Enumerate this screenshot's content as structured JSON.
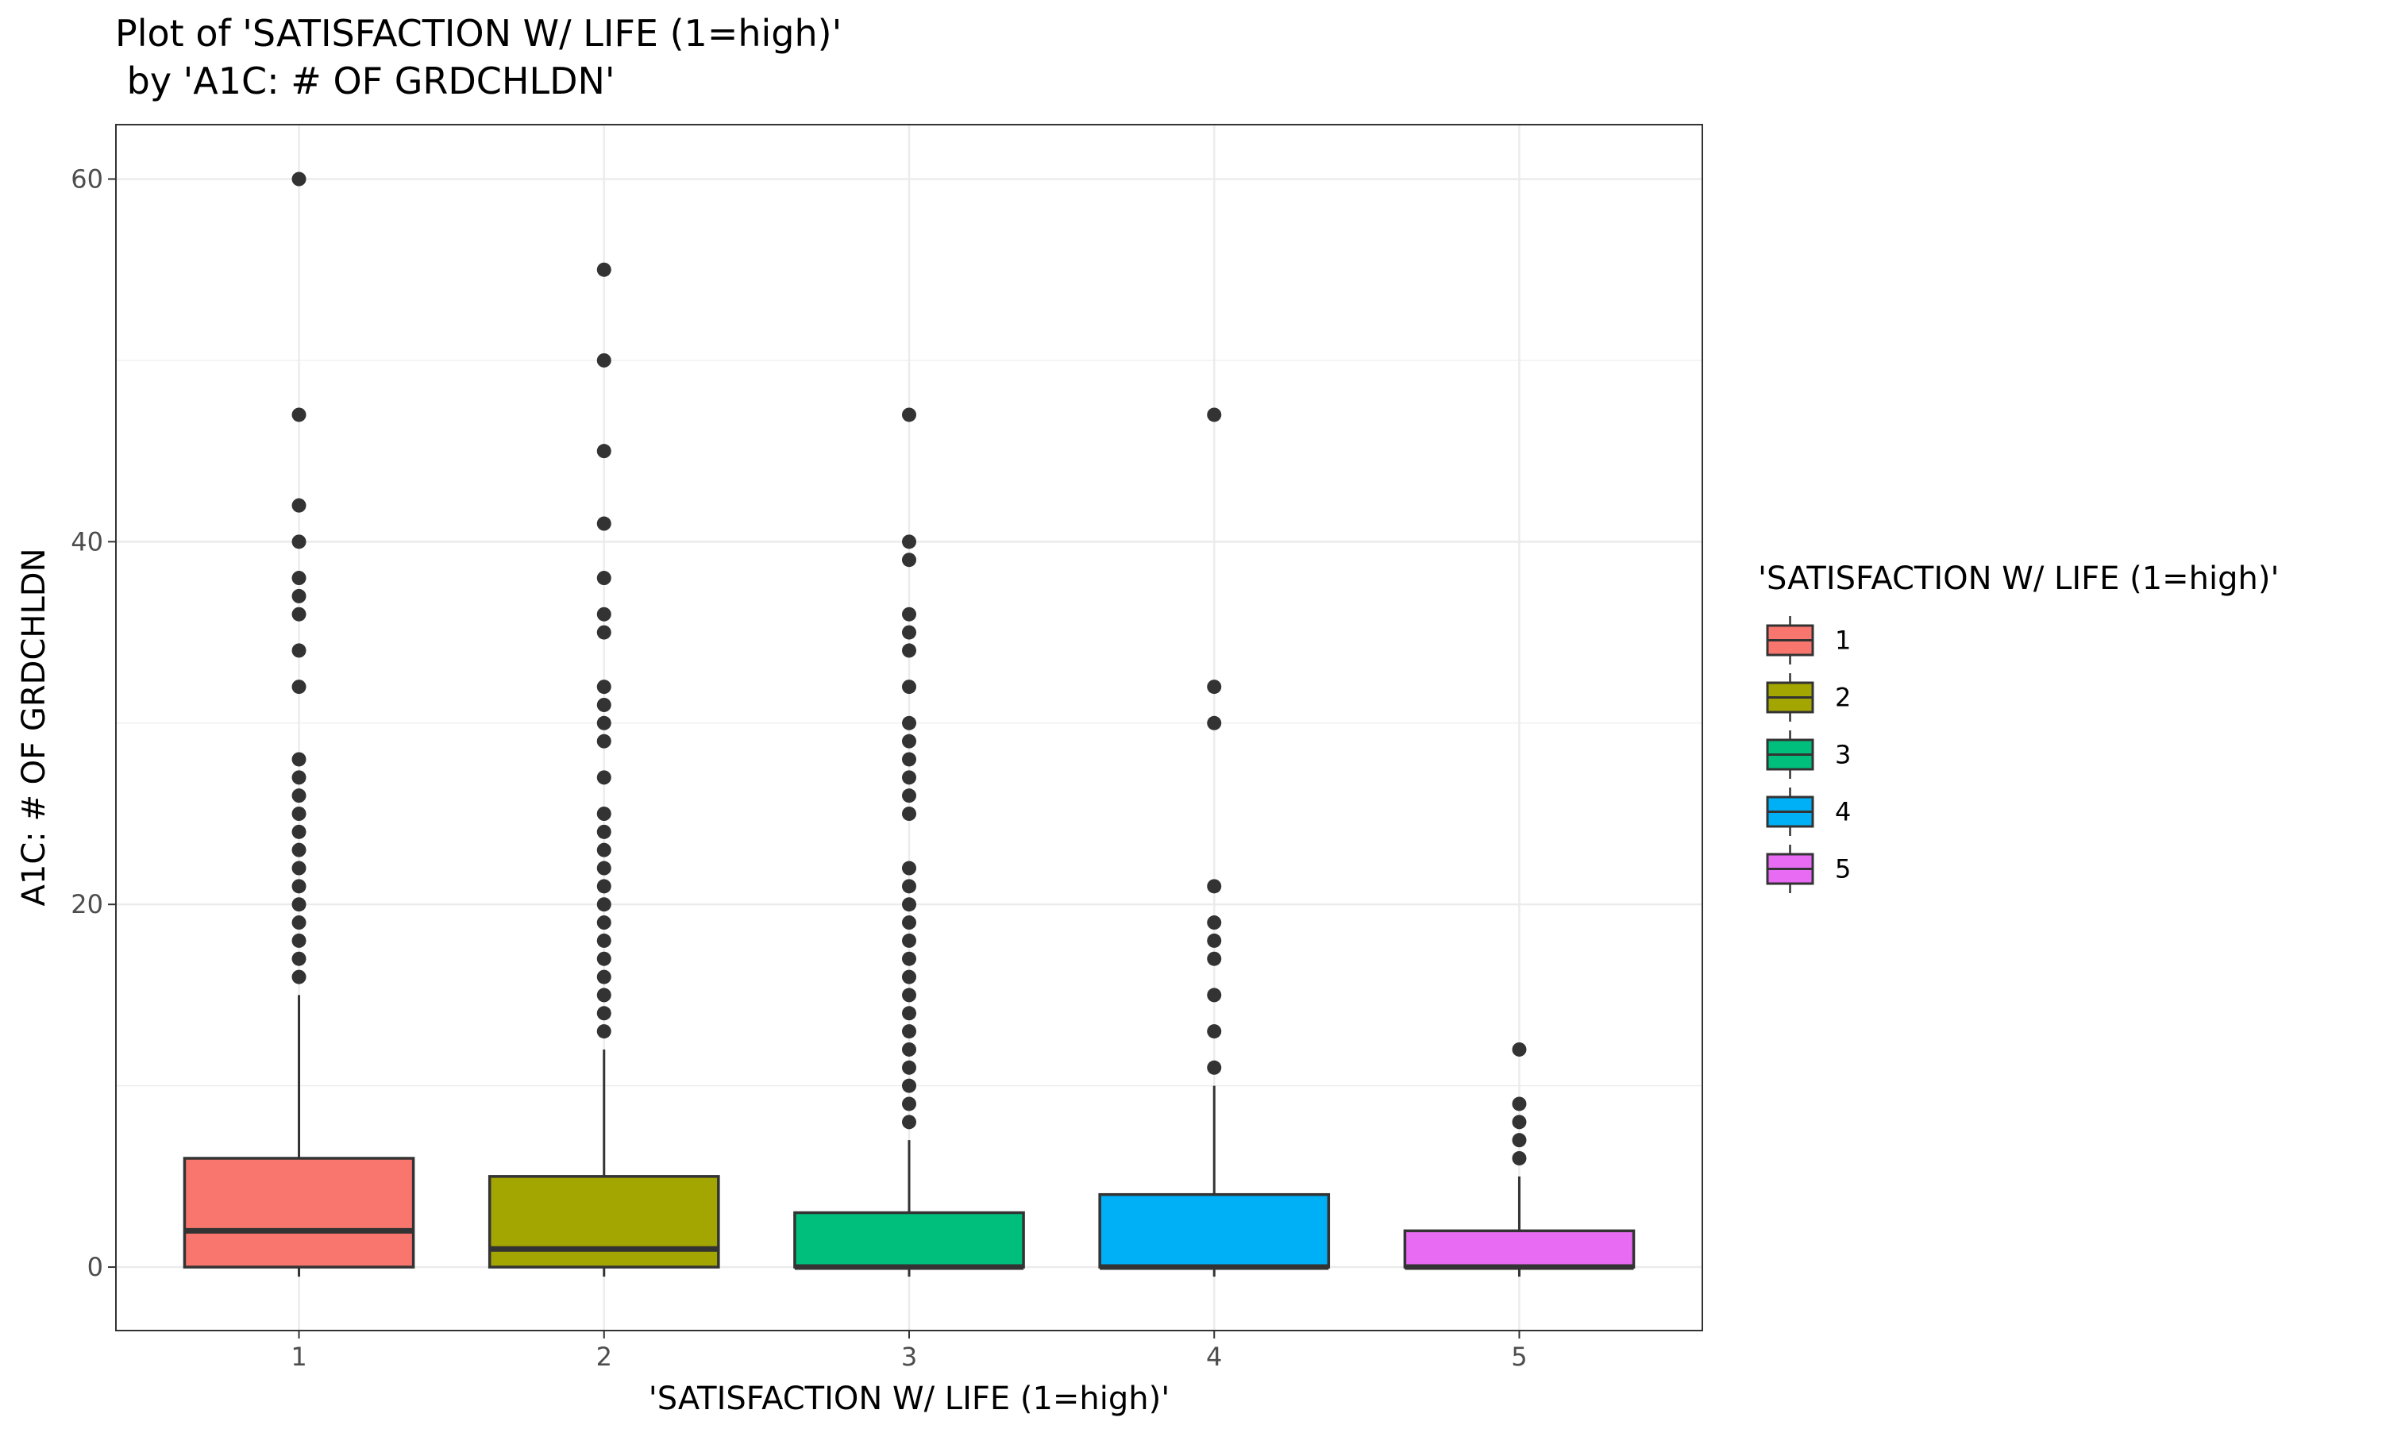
{
  "chart_data": {
    "type": "box",
    "title_line1": "Plot of 'SATISFACTION W/ LIFE (1=high)'",
    "title_line2": " by 'A1C: # OF GRDCHLDN'",
    "xlabel": "'SATISFACTION W/ LIFE (1=high)'",
    "ylabel": "A1C: # OF GRDCHLDN",
    "ylim": [
      -3.5,
      63
    ],
    "y_ticks": [
      0,
      20,
      40,
      60
    ],
    "categories": [
      "1",
      "2",
      "3",
      "4",
      "5"
    ],
    "legend": {
      "title": "'SATISFACTION W/ LIFE (1=high)'",
      "position": "right",
      "entries": [
        "1",
        "2",
        "3",
        "4",
        "5"
      ]
    },
    "grid": true,
    "series": [
      {
        "category": "1",
        "color": "#F8766D",
        "min": 0,
        "q1": 0,
        "median": 2,
        "q3": 6,
        "max": 15,
        "outliers": [
          16,
          17,
          18,
          19,
          20,
          21,
          22,
          23,
          24,
          25,
          26,
          27,
          28,
          32,
          34,
          36,
          37,
          38,
          40,
          42,
          47,
          60
        ]
      },
      {
        "category": "2",
        "color": "#A3A500",
        "min": 0,
        "q1": 0,
        "median": 1,
        "q3": 5,
        "max": 12,
        "outliers": [
          13,
          14,
          15,
          16,
          17,
          18,
          19,
          20,
          21,
          22,
          23,
          24,
          25,
          27,
          29,
          30,
          31,
          32,
          35,
          36,
          38,
          41,
          45,
          50,
          55
        ]
      },
      {
        "category": "3",
        "color": "#00BF7D",
        "min": 0,
        "q1": 0,
        "median": 0,
        "q3": 3,
        "max": 7,
        "outliers": [
          8,
          9,
          10,
          11,
          12,
          13,
          14,
          15,
          16,
          17,
          18,
          19,
          20,
          21,
          22,
          25,
          26,
          27,
          28,
          29,
          30,
          32,
          34,
          35,
          36,
          39,
          40,
          47
        ]
      },
      {
        "category": "4",
        "color": "#00B0F6",
        "min": 0,
        "q1": 0,
        "median": 0,
        "q3": 4,
        "max": 10,
        "outliers": [
          11,
          13,
          15,
          17,
          18,
          19,
          21,
          30,
          32,
          47
        ]
      },
      {
        "category": "5",
        "color": "#E76BF3",
        "min": 0,
        "q1": 0,
        "median": 0,
        "q3": 2,
        "max": 5,
        "outliers": [
          6,
          7,
          8,
          9,
          12
        ]
      }
    ]
  }
}
